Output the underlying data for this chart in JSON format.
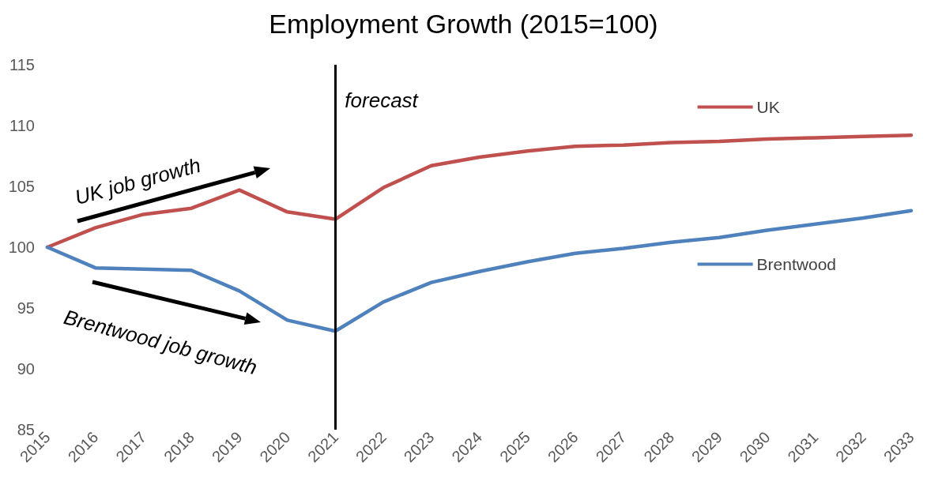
{
  "chart_data": {
    "type": "line",
    "title": "Employment Growth (2015=100)",
    "categories": [
      "2015",
      "2016",
      "2017",
      "2018",
      "2019",
      "2020",
      "2021",
      "2022",
      "2023",
      "2024",
      "2025",
      "2026",
      "2027",
      "2028",
      "2029",
      "2030",
      "2031",
      "2032",
      "2033"
    ],
    "series": [
      {
        "name": "UK",
        "color": "#c0504d",
        "values": [
          100,
          101.6,
          102.7,
          103.2,
          104.7,
          102.9,
          102.3,
          104.9,
          106.7,
          107.4,
          107.9,
          108.3,
          108.4,
          108.6,
          108.7,
          108.9,
          109.0,
          109.1,
          109.2
        ]
      },
      {
        "name": "Brentwood",
        "color": "#4f81bd",
        "values": [
          100,
          98.3,
          98.2,
          98.1,
          96.4,
          94.0,
          93.1,
          95.5,
          97.1,
          98.0,
          98.8,
          99.5,
          99.9,
          100.4,
          100.8,
          101.4,
          101.9,
          102.4,
          103.0
        ]
      }
    ],
    "ylim": [
      85,
      115
    ],
    "yticks": [
      85,
      90,
      95,
      100,
      105,
      110,
      115
    ],
    "ref_lines": [
      {
        "axis": "x",
        "value": "2021",
        "label": "forecast",
        "color": "#000000"
      }
    ],
    "annotations": [
      "UK job growth",
      "Brentwood job growth"
    ],
    "grid": false,
    "legend": "right",
    "marker": "none",
    "line_style": "solid"
  }
}
